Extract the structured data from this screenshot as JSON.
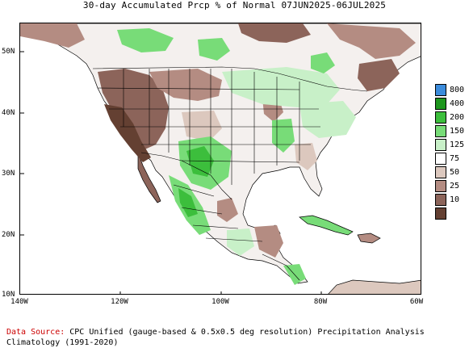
{
  "title": "30-day Accumulated Prcp % of Normal 07JUN2025-06JUL2025",
  "map": {
    "lat_ticks": [
      "50N",
      "40N",
      "30N",
      "20N",
      "10N"
    ],
    "lon_ticks": [
      "140W",
      "120W",
      "100W",
      "80W",
      "60W"
    ],
    "region": "North America"
  },
  "legend": {
    "items": [
      {
        "label": "800",
        "color": "#3c8cdc"
      },
      {
        "label": "400",
        "color": "#1e961e"
      },
      {
        "label": "200",
        "color": "#3cbe3c"
      },
      {
        "label": "150",
        "color": "#78dc78"
      },
      {
        "label": "125",
        "color": "#c8f0c8"
      },
      {
        "label": "75",
        "color": "#ffffff"
      },
      {
        "label": "50",
        "color": "#dcc8be"
      },
      {
        "label": "25",
        "color": "#b48c82"
      },
      {
        "label": "10",
        "color": "#8c645a"
      },
      {
        "label": "",
        "color": "#644032"
      }
    ]
  },
  "footer": {
    "source_label": "Data Source:",
    "source_text": " CPC Unified (gauge-based & 0.5x0.5 deg resolution) Precipitation Analysis",
    "climatology": "Climatology (1991-2020)"
  }
}
